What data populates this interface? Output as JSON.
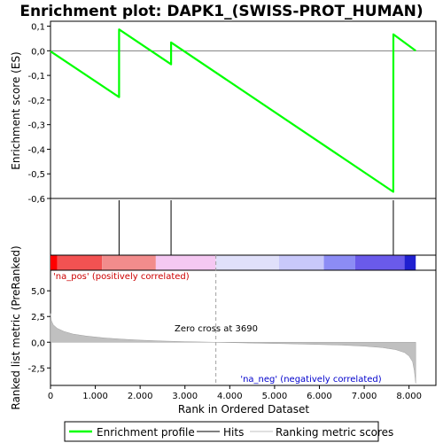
{
  "chart_data": {
    "type": "line",
    "title": "Enrichment plot: DAPK1_(SWISS-PROT_HUMAN)",
    "es_panel": {
      "ylabel": "Enrichment score (ES)",
      "ylim": [
        -0.6,
        0.12
      ],
      "yticks": [
        0.1,
        0.0,
        -0.1,
        -0.2,
        -0.3,
        -0.4,
        -0.5,
        -0.6
      ],
      "ytick_labels": [
        "0,1",
        "0,0",
        "-0,1",
        "-0,2",
        "-0,3",
        "-0,4",
        "-0,5",
        "-0,6"
      ],
      "series": [
        {
          "name": "Enrichment profile",
          "color": "#00ff00",
          "x": [
            0,
            1530,
            1531,
            2690,
            2691,
            7650,
            7651,
            8150
          ],
          "y": [
            -0.002,
            -0.188,
            0.087,
            -0.055,
            0.034,
            -0.573,
            0.067,
            0.0
          ]
        }
      ]
    },
    "hits": {
      "name": "Hits",
      "color": "#000000",
      "x": [
        1530,
        2690,
        7650
      ]
    },
    "ranking_panel": {
      "ylabel": "Ranked list metric (PreRanked)",
      "xlabel": "Rank in Ordered Dataset",
      "xlim": [
        0,
        8600
      ],
      "ylim": [
        -4.2,
        7.0
      ],
      "xticks": [
        0,
        1000,
        2000,
        3000,
        4000,
        5000,
        6000,
        7000,
        8000
      ],
      "xtick_labels": [
        "0",
        "1.000",
        "2.000",
        "3.000",
        "4.000",
        "5.000",
        "6.000",
        "7.000",
        "8.000"
      ],
      "yticks": [
        5.0,
        2.5,
        0.0,
        -2.5
      ],
      "ytick_labels": [
        "5,0",
        "2,5",
        "0,0",
        "-2,5"
      ],
      "series": [
        {
          "name": "Ranking metric scores",
          "color": "#c0c0c0",
          "x": [
            0,
            20,
            60,
            150,
            300,
            500,
            800,
            1200,
            1600,
            2000,
            2500,
            3000,
            3690,
            4500,
            5500,
            6500,
            7000,
            7400,
            7700,
            7900,
            8000,
            8080,
            8120,
            8150
          ],
          "y": [
            2.8,
            2.1,
            1.7,
            1.35,
            1.05,
            0.8,
            0.6,
            0.42,
            0.3,
            0.2,
            0.12,
            0.06,
            0.0,
            -0.08,
            -0.17,
            -0.28,
            -0.38,
            -0.52,
            -0.72,
            -1.0,
            -1.35,
            -1.9,
            -2.8,
            -4.0
          ]
        }
      ],
      "zero_cross": 3690,
      "annotations": {
        "pos_label": "'na_pos' (positively correlated)",
        "neg_label": "'na_neg' (negatively correlated)",
        "zero_cross_label": "Zero cross at 3690"
      }
    },
    "color_bar": {
      "x": [
        0,
        150,
        1150,
        2350,
        3690,
        5100,
        6100,
        6800,
        7900,
        8150
      ],
      "colors": [
        "#ff0000",
        "#f25252",
        "#f28c8c",
        "#f5c8f2",
        "#e0e0fa",
        "#c8c8fa",
        "#8c8cf5",
        "#6a5aea",
        "#2020d0"
      ]
    },
    "legend": {
      "items": [
        {
          "label": "Enrichment profile",
          "color": "#00ff00"
        },
        {
          "label": "Hits",
          "color": "#000000"
        },
        {
          "label": "Ranking metric scores",
          "color": "#c0c0c0"
        }
      ]
    }
  }
}
